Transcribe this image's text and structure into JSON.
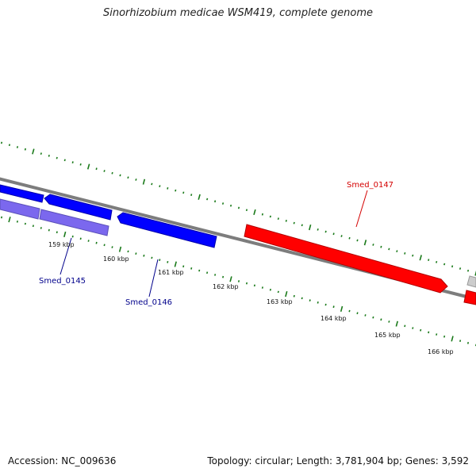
{
  "title": "Sinorhizobium medicae WSM419, complete genome",
  "footer": {
    "accession": "Accession: NC_009636",
    "stats": "Topology: circular; Length: 3,781,904 bp; Genes: 3,592"
  },
  "scale_labels": [
    "159 kbp",
    "160 kbp",
    "161 kbp",
    "162 kbp",
    "163 kbp",
    "164 kbp",
    "165 kbp",
    "166 kbp"
  ],
  "genes": [
    {
      "label": "Smed_0145",
      "color": "#00008b"
    },
    {
      "label": "Smed_0146",
      "color": "#00008b"
    },
    {
      "label": "Smed_0147",
      "color": "#d40000"
    }
  ],
  "colors": {
    "backbone": "#808080",
    "forward_gene": "#ff0000",
    "reverse_gene": "#0000ff",
    "rna_feature": "#7b68ee",
    "ticks": "#1a7a1a"
  }
}
